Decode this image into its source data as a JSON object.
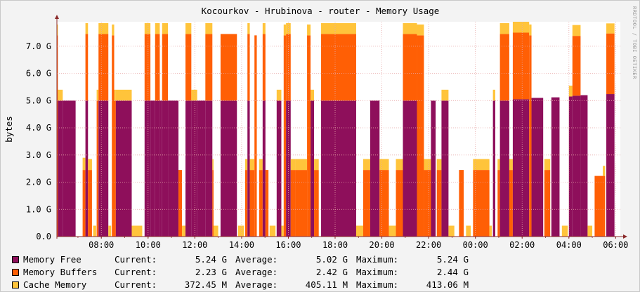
{
  "chart_data": {
    "type": "area",
    "title": "Kocourkov - Hrubinova - router - Memory Usage",
    "ylabel": "bytes",
    "ylim": [
      0,
      7.9
    ],
    "y_unit": "G",
    "yticks": [
      {
        "value": 0,
        "label": "0.0"
      },
      {
        "value": 1,
        "label": "1.0 G"
      },
      {
        "value": 2,
        "label": "2.0 G"
      },
      {
        "value": 3,
        "label": "3.0 G"
      },
      {
        "value": 4,
        "label": "4.0 G"
      },
      {
        "value": 5,
        "label": "5.0 G"
      },
      {
        "value": 6,
        "label": "6.0 G"
      },
      {
        "value": 7,
        "label": "7.0 G"
      }
    ],
    "xrange": [
      6.1,
      30.2
    ],
    "xticks": [
      {
        "value": 8,
        "label": "08:00"
      },
      {
        "value": 10,
        "label": "10:00"
      },
      {
        "value": 12,
        "label": "12:00"
      },
      {
        "value": 14,
        "label": "14:00"
      },
      {
        "value": 16,
        "label": "16:00"
      },
      {
        "value": 18,
        "label": "18:00"
      },
      {
        "value": 20,
        "label": "20:00"
      },
      {
        "value": 22,
        "label": "22:00"
      },
      {
        "value": 24,
        "label": "00:00"
      },
      {
        "value": 26,
        "label": "02:00"
      },
      {
        "value": 28,
        "label": "04:00"
      },
      {
        "value": 30,
        "label": "06:00"
      }
    ],
    "stack_order": [
      "Memory Free",
      "Memory Buffers",
      "Cache Memory"
    ],
    "segments": [
      {
        "x0": 6.1,
        "x1": 6.14,
        "free": 0.0,
        "buffers": 7.4,
        "cache": 0.4
      },
      {
        "x0": 6.14,
        "x1": 6.35,
        "free": 5.0,
        "buffers": 0.0,
        "cache": 0.4
      },
      {
        "x0": 6.35,
        "x1": 6.9,
        "free": 5.0,
        "buffers": 0.0,
        "cache": 0.0
      },
      {
        "x0": 7.2,
        "x1": 7.32,
        "free": 0.0,
        "buffers": 2.45,
        "cache": 0.45
      },
      {
        "x0": 7.32,
        "x1": 7.43,
        "free": 5.0,
        "buffers": 2.45,
        "cache": 0.4
      },
      {
        "x0": 7.43,
        "x1": 7.6,
        "free": 0.0,
        "buffers": 2.45,
        "cache": 0.4
      },
      {
        "x0": 7.65,
        "x1": 7.78,
        "free": 0.0,
        "buffers": 0.0,
        "cache": 0.4
      },
      {
        "x0": 7.8,
        "x1": 7.88,
        "free": 0.0,
        "buffers": 5.0,
        "cache": 0.4
      },
      {
        "x0": 7.88,
        "x1": 8.3,
        "free": 5.0,
        "buffers": 2.45,
        "cache": 0.4
      },
      {
        "x0": 8.3,
        "x1": 8.42,
        "free": 0.0,
        "buffers": 0.0,
        "cache": 0.4
      },
      {
        "x0": 8.45,
        "x1": 8.55,
        "free": 0.0,
        "buffers": 7.4,
        "cache": 0.4
      },
      {
        "x0": 8.55,
        "x1": 8.62,
        "free": 0.0,
        "buffers": 5.0,
        "cache": 0.4
      },
      {
        "x0": 8.62,
        "x1": 9.3,
        "free": 5.0,
        "buffers": 0.0,
        "cache": 0.4
      },
      {
        "x0": 9.3,
        "x1": 9.75,
        "free": 0.0,
        "buffers": 0.0,
        "cache": 0.4
      },
      {
        "x0": 9.85,
        "x1": 10.1,
        "free": 5.0,
        "buffers": 2.45,
        "cache": 0.4
      },
      {
        "x0": 10.1,
        "x1": 10.3,
        "free": 5.0,
        "buffers": 0.0,
        "cache": 0.0
      },
      {
        "x0": 10.3,
        "x1": 10.5,
        "free": 5.0,
        "buffers": 2.45,
        "cache": 0.4
      },
      {
        "x0": 10.5,
        "x1": 10.6,
        "free": 5.0,
        "buffers": 0.0,
        "cache": 0.0
      },
      {
        "x0": 10.6,
        "x1": 10.85,
        "free": 5.0,
        "buffers": 2.45,
        "cache": 0.4
      },
      {
        "x0": 10.85,
        "x1": 11.3,
        "free": 5.0,
        "buffers": 0.0,
        "cache": 0.0
      },
      {
        "x0": 11.3,
        "x1": 11.45,
        "free": 0.0,
        "buffers": 2.45,
        "cache": 0.0
      },
      {
        "x0": 11.45,
        "x1": 11.6,
        "free": 0.0,
        "buffers": 0.0,
        "cache": 0.4
      },
      {
        "x0": 11.6,
        "x1": 11.85,
        "free": 5.0,
        "buffers": 2.45,
        "cache": 0.4
      },
      {
        "x0": 11.85,
        "x1": 12.1,
        "free": 5.0,
        "buffers": 0.0,
        "cache": 0.4
      },
      {
        "x0": 12.1,
        "x1": 12.45,
        "free": 5.0,
        "buffers": 0.0,
        "cache": 0.0
      },
      {
        "x0": 12.45,
        "x1": 12.75,
        "free": 5.0,
        "buffers": 2.45,
        "cache": 0.4
      },
      {
        "x0": 12.75,
        "x1": 12.8,
        "free": 0.0,
        "buffers": 2.45,
        "cache": 0.4
      },
      {
        "x0": 12.8,
        "x1": 13.0,
        "free": 0.0,
        "buffers": 0.0,
        "cache": 0.4
      },
      {
        "x0": 13.1,
        "x1": 13.8,
        "free": 5.0,
        "buffers": 2.45,
        "cache": 0.0
      },
      {
        "x0": 13.85,
        "x1": 14.1,
        "free": 0.0,
        "buffers": 0.0,
        "cache": 0.4
      },
      {
        "x0": 14.15,
        "x1": 14.25,
        "free": 0.0,
        "buffers": 2.45,
        "cache": 0.4
      },
      {
        "x0": 14.25,
        "x1": 14.35,
        "free": 5.0,
        "buffers": 2.45,
        "cache": 0.4
      },
      {
        "x0": 14.35,
        "x1": 14.55,
        "free": 0.0,
        "buffers": 2.45,
        "cache": 0.4
      },
      {
        "x0": 14.55,
        "x1": 14.65,
        "free": 0.0,
        "buffers": 7.4,
        "cache": 0.0
      },
      {
        "x0": 14.75,
        "x1": 14.9,
        "free": 0.0,
        "buffers": 2.45,
        "cache": 0.4
      },
      {
        "x0": 14.9,
        "x1": 15.02,
        "free": 5.0,
        "buffers": 2.45,
        "cache": 0.4
      },
      {
        "x0": 15.02,
        "x1": 15.15,
        "free": 0.0,
        "buffers": 2.45,
        "cache": 0.0
      },
      {
        "x0": 15.2,
        "x1": 15.45,
        "free": 0.0,
        "buffers": 0.0,
        "cache": 0.4
      },
      {
        "x0": 15.5,
        "x1": 15.7,
        "free": 5.0,
        "buffers": 0.0,
        "cache": 0.4
      },
      {
        "x0": 15.7,
        "x1": 15.8,
        "free": 0.0,
        "buffers": 0.0,
        "cache": 0.4
      },
      {
        "x0": 15.8,
        "x1": 15.9,
        "free": 0.0,
        "buffers": 7.4,
        "cache": 0.4
      },
      {
        "x0": 15.9,
        "x1": 16.1,
        "free": 5.0,
        "buffers": 2.45,
        "cache": 0.4
      },
      {
        "x0": 16.1,
        "x1": 16.3,
        "free": 0.0,
        "buffers": 2.45,
        "cache": 0.4
      },
      {
        "x0": 16.3,
        "x1": 16.8,
        "free": 0.0,
        "buffers": 2.45,
        "cache": 0.4
      },
      {
        "x0": 16.8,
        "x1": 16.95,
        "free": 0.0,
        "buffers": 7.4,
        "cache": 0.4
      },
      {
        "x0": 16.95,
        "x1": 17.1,
        "free": 5.0,
        "buffers": 0.0,
        "cache": 0.4
      },
      {
        "x0": 17.1,
        "x1": 17.3,
        "free": 0.0,
        "buffers": 2.45,
        "cache": 0.4
      },
      {
        "x0": 17.4,
        "x1": 18.9,
        "free": 5.0,
        "buffers": 2.45,
        "cache": 0.4
      },
      {
        "x0": 18.9,
        "x1": 19.2,
        "free": 0.0,
        "buffers": 0.0,
        "cache": 0.4
      },
      {
        "x0": 19.2,
        "x1": 19.5,
        "free": 0.0,
        "buffers": 2.45,
        "cache": 0.4
      },
      {
        "x0": 19.5,
        "x1": 19.9,
        "free": 5.0,
        "buffers": 0.0,
        "cache": 0.0
      },
      {
        "x0": 19.9,
        "x1": 20.3,
        "free": 0.0,
        "buffers": 2.45,
        "cache": 0.4
      },
      {
        "x0": 20.3,
        "x1": 20.6,
        "free": 0.0,
        "buffers": 0.0,
        "cache": 0.4
      },
      {
        "x0": 20.6,
        "x1": 20.9,
        "free": 0.0,
        "buffers": 2.45,
        "cache": 0.4
      },
      {
        "x0": 20.9,
        "x1": 21.5,
        "free": 5.0,
        "buffers": 2.45,
        "cache": 0.4
      },
      {
        "x0": 21.5,
        "x1": 21.8,
        "free": 0.0,
        "buffers": 7.4,
        "cache": 0.4
      },
      {
        "x0": 21.8,
        "x1": 22.1,
        "free": 0.0,
        "buffers": 2.45,
        "cache": 0.4
      },
      {
        "x0": 22.1,
        "x1": 22.3,
        "free": 5.0,
        "buffers": 0.0,
        "cache": 0.0
      },
      {
        "x0": 22.35,
        "x1": 22.55,
        "free": 0.0,
        "buffers": 2.45,
        "cache": 0.4
      },
      {
        "x0": 22.55,
        "x1": 22.85,
        "free": 5.0,
        "buffers": 0.0,
        "cache": 0.4
      },
      {
        "x0": 22.85,
        "x1": 23.1,
        "free": 0.0,
        "buffers": 0.0,
        "cache": 0.4
      },
      {
        "x0": 23.3,
        "x1": 23.5,
        "free": 0.0,
        "buffers": 2.45,
        "cache": 0.0
      },
      {
        "x0": 23.6,
        "x1": 23.8,
        "free": 0.0,
        "buffers": 0.0,
        "cache": 0.4
      },
      {
        "x0": 23.9,
        "x1": 24.6,
        "free": 0.0,
        "buffers": 2.45,
        "cache": 0.4
      },
      {
        "x0": 24.6,
        "x1": 24.7,
        "free": 0.0,
        "buffers": 0.0,
        "cache": 0.4
      },
      {
        "x0": 24.75,
        "x1": 24.85,
        "free": 5.0,
        "buffers": 0.0,
        "cache": 0.4
      },
      {
        "x0": 24.95,
        "x1": 25.05,
        "free": 0.0,
        "buffers": 2.45,
        "cache": 0.4
      },
      {
        "x0": 25.05,
        "x1": 25.45,
        "free": 5.0,
        "buffers": 2.45,
        "cache": 0.4
      },
      {
        "x0": 25.45,
        "x1": 25.6,
        "free": 0.0,
        "buffers": 2.45,
        "cache": 0.4
      },
      {
        "x0": 25.6,
        "x1": 26.3,
        "free": 5.05,
        "buffers": 2.45,
        "cache": 0.4
      },
      {
        "x0": 26.3,
        "x1": 26.4,
        "free": 0.0,
        "buffers": 7.4,
        "cache": 0.4
      },
      {
        "x0": 26.4,
        "x1": 26.9,
        "free": 5.1,
        "buffers": 0.0,
        "cache": 0.0
      },
      {
        "x0": 26.95,
        "x1": 27.2,
        "free": 0.0,
        "buffers": 2.45,
        "cache": 0.4
      },
      {
        "x0": 27.25,
        "x1": 27.6,
        "free": 5.12,
        "buffers": 0.0,
        "cache": 0.0
      },
      {
        "x0": 27.7,
        "x1": 27.95,
        "free": 0.0,
        "buffers": 0.0,
        "cache": 0.4
      },
      {
        "x0": 28.0,
        "x1": 28.15,
        "free": 5.15,
        "buffers": 0.0,
        "cache": 0.4
      },
      {
        "x0": 28.15,
        "x1": 28.5,
        "free": 5.18,
        "buffers": 2.2,
        "cache": 0.4
      },
      {
        "x0": 28.5,
        "x1": 28.8,
        "free": 5.2,
        "buffers": 0.0,
        "cache": 0.0
      },
      {
        "x0": 28.8,
        "x1": 29.0,
        "free": 0.0,
        "buffers": 0.0,
        "cache": 0.4
      },
      {
        "x0": 29.1,
        "x1": 29.45,
        "free": 0.0,
        "buffers": 2.23,
        "cache": 0.0
      },
      {
        "x0": 29.45,
        "x1": 29.55,
        "free": 0.0,
        "buffers": 2.23,
        "cache": 0.37
      },
      {
        "x0": 29.6,
        "x1": 29.95,
        "free": 5.24,
        "buffers": 2.23,
        "cache": 0.37
      }
    ],
    "series": [
      {
        "name": "Memory Free",
        "color": "#8e0f5b",
        "current": "5.24 G",
        "average": "5.02 G",
        "maximum": "5.24 G"
      },
      {
        "name": "Memory Buffers",
        "color": "#ff5f05",
        "current": "2.23 G",
        "average": "2.42 G",
        "maximum": "2.44 G"
      },
      {
        "name": "Cache Memory",
        "color": "#ffc43b",
        "current": "372.45 M",
        "average": "405.11 M",
        "maximum": "413.06 M"
      }
    ],
    "grid": true,
    "legend_position": "bottom"
  },
  "legend": {
    "current_label": "Current:",
    "average_label": "Average:",
    "maximum_label": "Maximum:"
  },
  "watermark": "RRDTOOL / TOBI OETIKER",
  "colors": {
    "background": "#f3f3f3",
    "plot_bg": "#ffffff",
    "grid": "#e8aaaa",
    "axis": "#8a2a2a"
  }
}
